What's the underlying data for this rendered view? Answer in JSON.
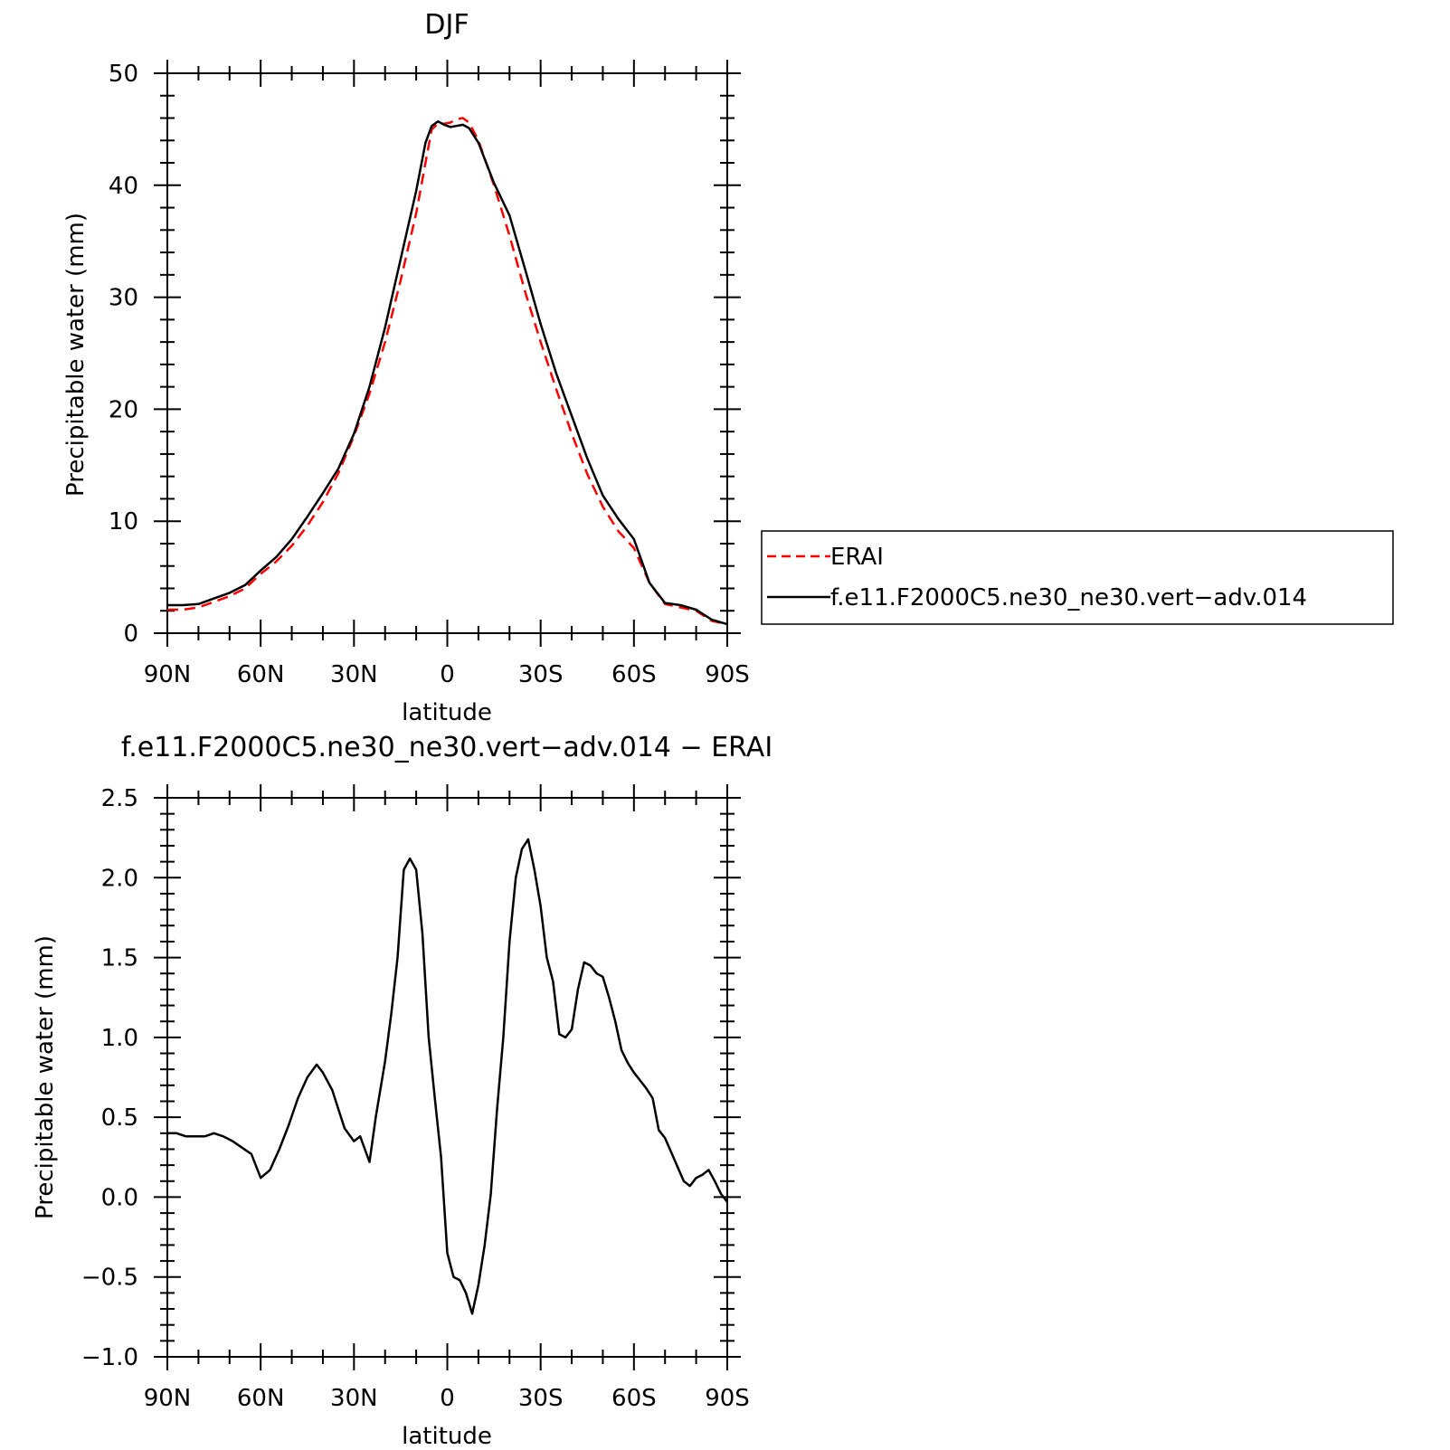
{
  "chart_data": [
    {
      "type": "line",
      "title": "DJF",
      "xlabel": "latitude",
      "ylabel": "Precipitable water (mm)",
      "xlim": [
        90,
        -90
      ],
      "ylim": [
        0,
        50
      ],
      "x_ticks": [
        {
          "value": 90,
          "label": "90N"
        },
        {
          "value": 60,
          "label": "60N"
        },
        {
          "value": 30,
          "label": "30N"
        },
        {
          "value": 0,
          "label": "0"
        },
        {
          "value": -30,
          "label": "30S"
        },
        {
          "value": -60,
          "label": "60S"
        },
        {
          "value": -90,
          "label": "90S"
        }
      ],
      "y_ticks": [
        {
          "value": 0,
          "label": "0"
        },
        {
          "value": 10,
          "label": "10"
        },
        {
          "value": 20,
          "label": "20"
        },
        {
          "value": 30,
          "label": "30"
        },
        {
          "value": 40,
          "label": "40"
        },
        {
          "value": 50,
          "label": "50"
        }
      ],
      "legend_position": "right",
      "series": [
        {
          "name": "ERAI",
          "color": "#ff0000",
          "style": "dashed",
          "x": [
            90,
            85,
            80,
            75,
            70,
            65,
            60,
            55,
            50,
            45,
            40,
            35,
            30,
            25,
            20,
            15,
            10,
            7,
            5,
            3,
            1,
            -1,
            -3,
            -5,
            -7,
            -10,
            -15,
            -20,
            -25,
            -30,
            -35,
            -40,
            -45,
            -50,
            -55,
            -60,
            -65,
            -70,
            -75,
            -80,
            -85,
            -90
          ],
          "values": [
            2.1,
            2.1,
            2.3,
            2.8,
            3.3,
            4.0,
            5.3,
            6.4,
            7.8,
            9.6,
            11.7,
            14.3,
            17.6,
            21.4,
            26.0,
            31.5,
            37.5,
            42.0,
            45.0,
            45.5,
            45.5,
            45.6,
            45.9,
            46.0,
            45.6,
            44.0,
            40.0,
            35.5,
            30.5,
            26.0,
            21.8,
            17.8,
            14.2,
            11.3,
            9.1,
            7.6,
            4.5,
            2.6,
            2.3,
            2.0,
            1.1,
            0.8
          ]
        },
        {
          "name": "f.e11.F2000C5.ne30_ne30.vert−adv.014",
          "color": "#000000",
          "style": "solid",
          "x": [
            90,
            85,
            80,
            75,
            70,
            65,
            60,
            55,
            50,
            45,
            40,
            35,
            30,
            25,
            20,
            15,
            10,
            7,
            5,
            3,
            1,
            -1,
            -3,
            -5,
            -7,
            -10,
            -15,
            -20,
            -25,
            -30,
            -35,
            -40,
            -45,
            -50,
            -55,
            -60,
            -65,
            -70,
            -75,
            -80,
            -85,
            -90
          ],
          "values": [
            2.5,
            2.5,
            2.6,
            3.1,
            3.6,
            4.3,
            5.6,
            6.8,
            8.4,
            10.4,
            12.5,
            14.7,
            17.8,
            22.0,
            27.3,
            33.4,
            39.5,
            43.8,
            45.3,
            45.7,
            45.4,
            45.2,
            45.3,
            45.4,
            45.1,
            43.8,
            40.2,
            37.3,
            32.5,
            27.6,
            23.2,
            19.4,
            15.6,
            12.3,
            10.2,
            8.4,
            4.5,
            2.7,
            2.5,
            2.1,
            1.2,
            0.8
          ]
        }
      ]
    },
    {
      "type": "line",
      "title": "f.e11.F2000C5.ne30_ne30.vert−adv.014 − ERAI",
      "xlabel": "latitude",
      "ylabel": "Precipitable water (mm)",
      "xlim": [
        90,
        -90
      ],
      "ylim": [
        -1.0,
        2.5
      ],
      "x_ticks": [
        {
          "value": 90,
          "label": "90N"
        },
        {
          "value": 60,
          "label": "60N"
        },
        {
          "value": 30,
          "label": "30N"
        },
        {
          "value": 0,
          "label": "0"
        },
        {
          "value": -30,
          "label": "30S"
        },
        {
          "value": -60,
          "label": "60S"
        },
        {
          "value": -90,
          "label": "90S"
        }
      ],
      "y_ticks": [
        {
          "value": -1.0,
          "label": "−1.0"
        },
        {
          "value": -0.5,
          "label": "−0.5"
        },
        {
          "value": 0.0,
          "label": "0.0"
        },
        {
          "value": 0.5,
          "label": "0.5"
        },
        {
          "value": 1.0,
          "label": "1.0"
        },
        {
          "value": 1.5,
          "label": "1.5"
        },
        {
          "value": 2.0,
          "label": "2.0"
        },
        {
          "value": 2.5,
          "label": "2.5"
        }
      ],
      "series": [
        {
          "color": "#000000",
          "style": "solid",
          "x": [
            90,
            87,
            84,
            81,
            78,
            75,
            72,
            69,
            66,
            63,
            60,
            57,
            54,
            51,
            48,
            45,
            42,
            40,
            37,
            35,
            33,
            30,
            28,
            25,
            23,
            20,
            18,
            16,
            14,
            12,
            10,
            8,
            6,
            4,
            2,
            0,
            -2,
            -4,
            -6,
            -8,
            -10,
            -12,
            -14,
            -16,
            -18,
            -20,
            -22,
            -24,
            -26,
            -28,
            -30,
            -32,
            -34,
            -36,
            -38,
            -40,
            -42,
            -44,
            -46,
            -48,
            -50,
            -52,
            -54,
            -56,
            -58,
            -60,
            -62,
            -64,
            -66,
            -68,
            -70,
            -72,
            -74,
            -76,
            -78,
            -80,
            -82,
            -84,
            -86,
            -88,
            -90
          ],
          "values": [
            0.4,
            0.4,
            0.38,
            0.38,
            0.38,
            0.4,
            0.38,
            0.35,
            0.31,
            0.27,
            0.12,
            0.17,
            0.3,
            0.45,
            0.62,
            0.75,
            0.83,
            0.78,
            0.67,
            0.55,
            0.43,
            0.35,
            0.38,
            0.22,
            0.5,
            0.85,
            1.15,
            1.5,
            2.05,
            2.12,
            2.05,
            1.65,
            1.0,
            0.62,
            0.25,
            -0.35,
            -0.5,
            -0.52,
            -0.6,
            -0.73,
            -0.55,
            -0.3,
            0.02,
            0.55,
            1.0,
            1.6,
            2.0,
            2.18,
            2.24,
            2.05,
            1.82,
            1.5,
            1.35,
            1.02,
            1.0,
            1.05,
            1.3,
            1.47,
            1.45,
            1.4,
            1.38,
            1.25,
            1.1,
            0.92,
            0.84,
            0.78,
            0.73,
            0.68,
            0.62,
            0.42,
            0.37,
            0.28,
            0.19,
            0.1,
            0.07,
            0.12,
            0.14,
            0.17,
            0.1,
            0.02,
            -0.03
          ]
        }
      ]
    }
  ]
}
